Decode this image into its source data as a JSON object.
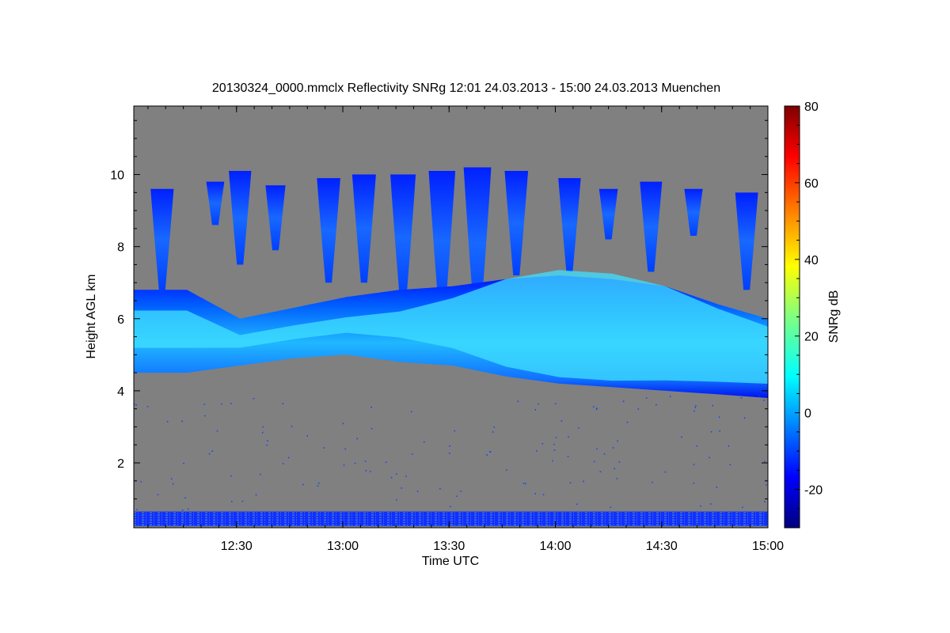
{
  "chart_data": {
    "type": "heatmap",
    "title": "20130324_0000.mmclx Reflectivity SNRg   12:01 24.03.2013 - 15:00 24.03.2013 Muenchen",
    "xlabel": "Time UTC",
    "ylabel": "Height AGL km",
    "xlim": [
      "12:01",
      "15:00"
    ],
    "ylim": [
      0.2,
      11.9
    ],
    "x_ticks": [
      "12:30",
      "13:00",
      "13:30",
      "14:00",
      "14:30",
      "15:00"
    ],
    "y_ticks": [
      2,
      4,
      6,
      8,
      10
    ],
    "background_color": "#808080",
    "colorbar": {
      "label": "SNRg dB",
      "range": [
        -30,
        80
      ],
      "ticks": [
        -20,
        0,
        20,
        40,
        60,
        80
      ],
      "colormap": "jet"
    },
    "cloud_layer": {
      "times_min": [
        0,
        15,
        30,
        45,
        60,
        75,
        90,
        105,
        120,
        135,
        150,
        165,
        179
      ],
      "base_km": [
        4.5,
        4.5,
        4.7,
        4.9,
        5.0,
        4.8,
        4.7,
        4.4,
        4.2,
        4.1,
        4.0,
        3.9,
        3.8
      ],
      "top_km": [
        6.8,
        6.8,
        6.0,
        6.3,
        6.6,
        6.8,
        6.9,
        7.1,
        7.2,
        7.1,
        6.9,
        6.4,
        6.0
      ],
      "peak_snr_db": [
        -4,
        -4,
        -8,
        -8,
        -8,
        -6,
        0,
        6,
        8,
        8,
        6,
        4,
        2
      ]
    },
    "fallstreaks": [
      {
        "center_min": 8,
        "top_km": 9.6,
        "bottom_km": 6.8
      },
      {
        "center_min": 23,
        "top_km": 9.8,
        "bottom_km": 8.6
      },
      {
        "center_min": 30,
        "top_km": 10.1,
        "bottom_km": 7.5
      },
      {
        "center_min": 40,
        "top_km": 9.7,
        "bottom_km": 7.9
      },
      {
        "center_min": 55,
        "top_km": 9.9,
        "bottom_km": 7.0
      },
      {
        "center_min": 65,
        "top_km": 10.0,
        "bottom_km": 7.0
      },
      {
        "center_min": 76,
        "top_km": 10.0,
        "bottom_km": 6.5
      },
      {
        "center_min": 87,
        "top_km": 10.1,
        "bottom_km": 6.2
      },
      {
        "center_min": 97,
        "top_km": 10.2,
        "bottom_km": 6.0
      },
      {
        "center_min": 108,
        "top_km": 10.1,
        "bottom_km": 7.2
      },
      {
        "center_min": 123,
        "top_km": 9.9,
        "bottom_km": 7.3
      },
      {
        "center_min": 134,
        "top_km": 9.6,
        "bottom_km": 8.2
      },
      {
        "center_min": 146,
        "top_km": 9.8,
        "bottom_km": 7.3
      },
      {
        "center_min": 158,
        "top_km": 9.6,
        "bottom_km": 8.3
      },
      {
        "center_min": 173,
        "top_km": 9.5,
        "bottom_km": 6.8
      }
    ],
    "ground_clutter": {
      "bottom_km": 0.25,
      "top_km": 0.65
    }
  }
}
